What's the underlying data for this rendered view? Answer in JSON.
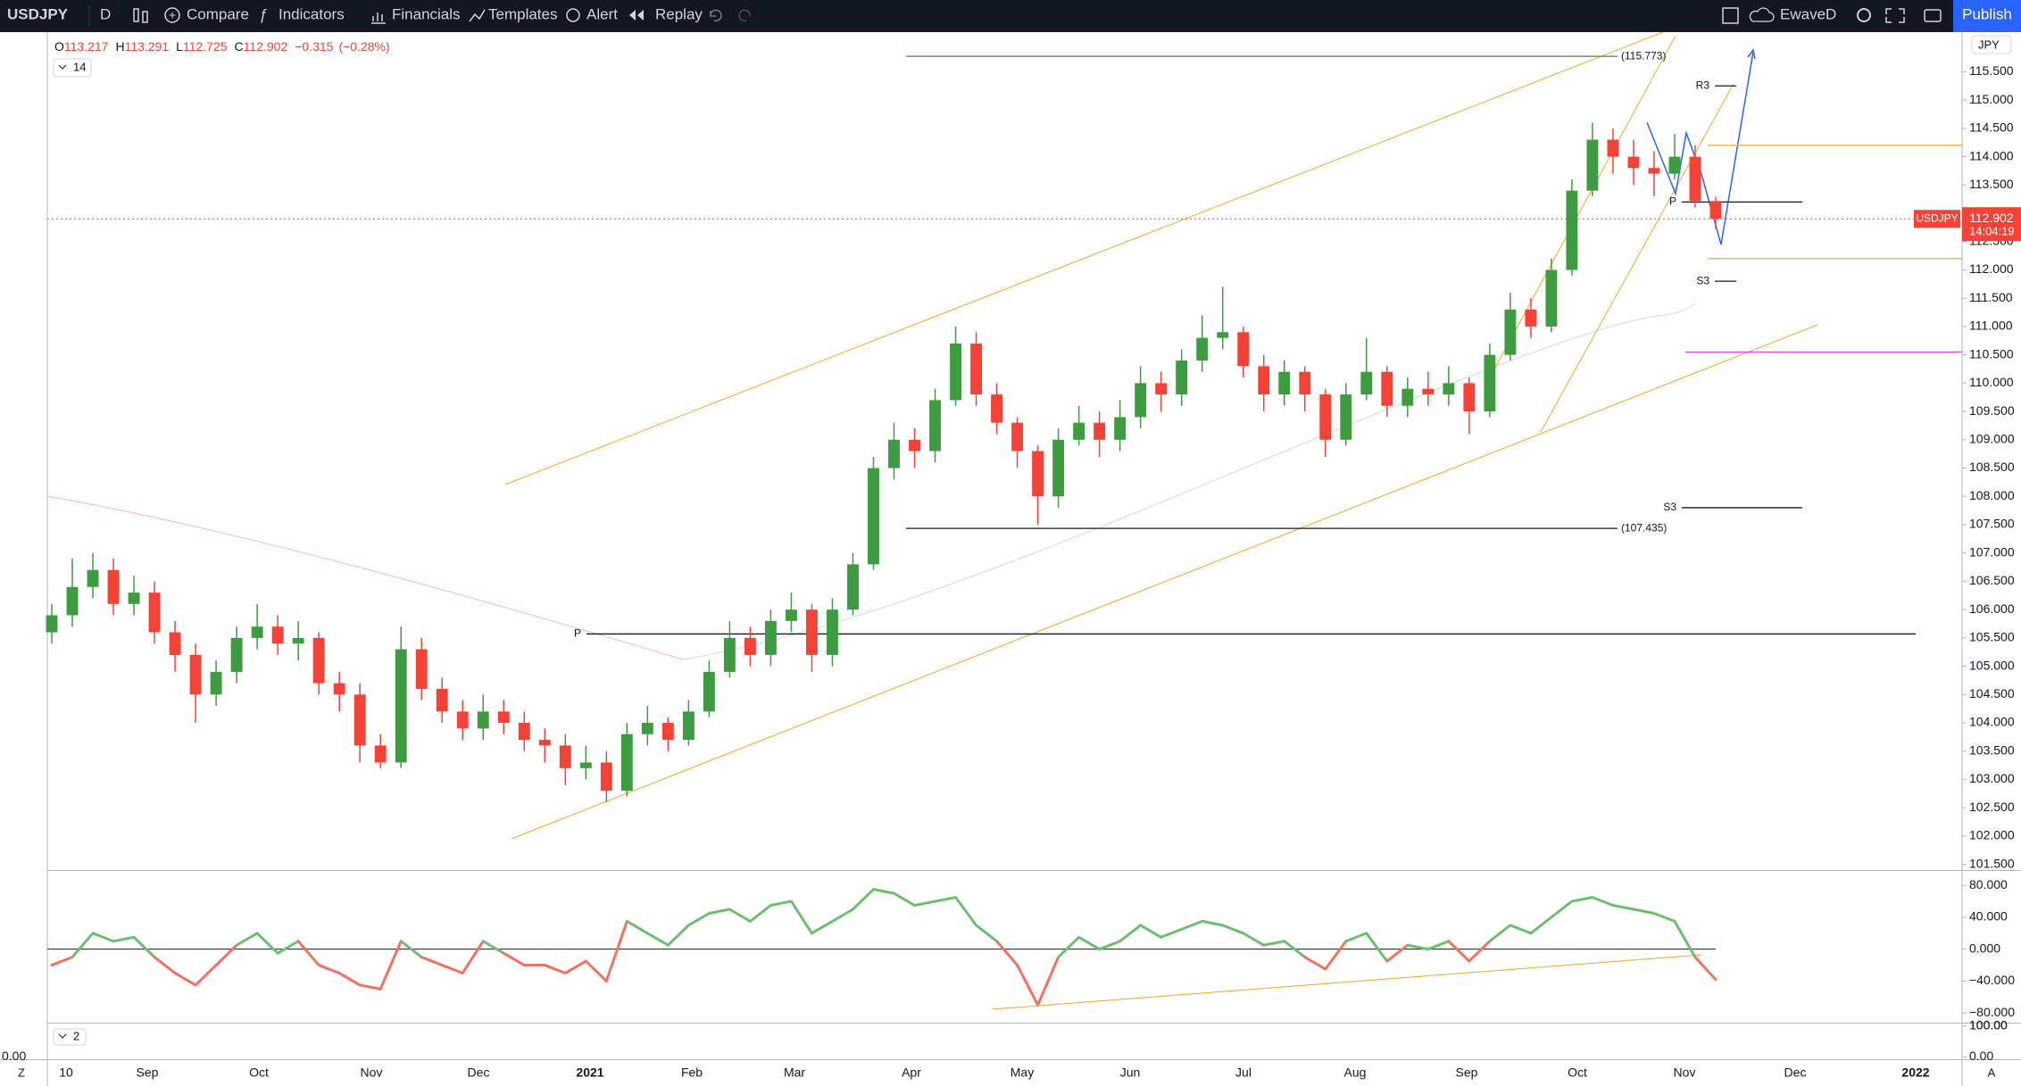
{
  "toolbar": {
    "symbol": "USDJPY",
    "interval": "D",
    "items": [
      "Compare",
      "Indicators",
      "Financials",
      "Templates",
      "Alert",
      "Replay"
    ],
    "layout": "EwaveD",
    "publish": "Publish"
  },
  "price_tag": {
    "symbol": "USDJPY",
    "countdown": "14:04:19"
  },
  "currency": "JPY",
  "indicator_param": "14",
  "stoch_param": "2",
  "corner_left": "Z",
  "corner_right": "A",
  "chart_data": {
    "type": "candlestick",
    "legend_letters": [
      "O",
      "H",
      "L",
      "C"
    ],
    "change": "−0.315",
    "change_pct": "(−0.28%)",
    "up_color": "#3d9c3f",
    "down_color": "#f44336",
    "candles": [
      [
        105.6,
        106.1,
        105.4,
        105.9
      ],
      [
        105.9,
        106.9,
        105.7,
        106.4
      ],
      [
        106.4,
        107.0,
        106.2,
        106.7
      ],
      [
        106.7,
        106.9,
        105.9,
        106.1
      ],
      [
        106.1,
        106.6,
        105.9,
        106.3
      ],
      [
        106.3,
        106.5,
        105.4,
        105.6
      ],
      [
        105.6,
        105.8,
        104.9,
        105.2
      ],
      [
        105.2,
        105.4,
        104.0,
        104.5
      ],
      [
        104.5,
        105.1,
        104.3,
        104.9
      ],
      [
        104.9,
        105.7,
        104.7,
        105.5
      ],
      [
        105.5,
        106.1,
        105.3,
        105.7
      ],
      [
        105.7,
        105.9,
        105.2,
        105.4
      ],
      [
        105.4,
        105.8,
        105.1,
        105.5
      ],
      [
        105.5,
        105.6,
        104.5,
        104.7
      ],
      [
        104.7,
        104.9,
        104.2,
        104.5
      ],
      [
        104.5,
        104.7,
        103.3,
        103.6
      ],
      [
        103.6,
        103.8,
        103.2,
        103.3
      ],
      [
        103.3,
        105.7,
        103.2,
        105.3
      ],
      [
        105.3,
        105.5,
        104.4,
        104.6
      ],
      [
        104.6,
        104.8,
        104.0,
        104.2
      ],
      [
        104.2,
        104.4,
        103.7,
        103.9
      ],
      [
        103.9,
        104.5,
        103.7,
        104.2
      ],
      [
        104.2,
        104.4,
        103.8,
        104.0
      ],
      [
        104.0,
        104.2,
        103.5,
        103.7
      ],
      [
        103.7,
        103.9,
        103.3,
        103.6
      ],
      [
        103.6,
        103.8,
        102.9,
        103.2
      ],
      [
        103.2,
        103.6,
        103.0,
        103.3
      ],
      [
        103.3,
        103.5,
        102.6,
        102.8
      ],
      [
        102.8,
        104.0,
        102.7,
        103.8
      ],
      [
        103.8,
        104.3,
        103.6,
        104.0
      ],
      [
        104.0,
        104.1,
        103.5,
        103.7
      ],
      [
        103.7,
        104.4,
        103.6,
        104.2
      ],
      [
        104.2,
        105.1,
        104.1,
        104.9
      ],
      [
        104.9,
        105.8,
        104.8,
        105.5
      ],
      [
        105.5,
        105.7,
        105.0,
        105.2
      ],
      [
        105.2,
        106.0,
        105.0,
        105.8
      ],
      [
        105.8,
        106.3,
        105.6,
        106.0
      ],
      [
        106.0,
        106.1,
        104.9,
        105.2
      ],
      [
        105.2,
        106.2,
        105.0,
        106.0
      ],
      [
        106.0,
        107.0,
        105.9,
        106.8
      ],
      [
        106.8,
        108.7,
        106.7,
        108.5
      ],
      [
        108.5,
        109.3,
        108.3,
        109.0
      ],
      [
        109.0,
        109.2,
        108.5,
        108.8
      ],
      [
        108.8,
        109.9,
        108.6,
        109.7
      ],
      [
        109.7,
        111.0,
        109.6,
        110.7
      ],
      [
        110.7,
        110.9,
        109.6,
        109.8
      ],
      [
        109.8,
        110.0,
        109.1,
        109.3
      ],
      [
        109.3,
        109.4,
        108.5,
        108.8
      ],
      [
        108.8,
        108.9,
        107.5,
        108.0
      ],
      [
        108.0,
        109.2,
        107.8,
        109.0
      ],
      [
        109.0,
        109.6,
        108.9,
        109.3
      ],
      [
        109.3,
        109.5,
        108.7,
        109.0
      ],
      [
        109.0,
        109.7,
        108.8,
        109.4
      ],
      [
        109.4,
        110.3,
        109.2,
        110.0
      ],
      [
        110.0,
        110.2,
        109.5,
        109.8
      ],
      [
        109.8,
        110.6,
        109.6,
        110.4
      ],
      [
        110.4,
        111.2,
        110.2,
        110.8
      ],
      [
        110.8,
        111.7,
        110.6,
        110.9
      ],
      [
        110.9,
        111.0,
        110.1,
        110.3
      ],
      [
        110.3,
        110.5,
        109.5,
        109.8
      ],
      [
        109.8,
        110.4,
        109.6,
        110.2
      ],
      [
        110.2,
        110.3,
        109.5,
        109.8
      ],
      [
        109.8,
        109.9,
        108.7,
        109.0
      ],
      [
        109.0,
        110.0,
        108.9,
        109.8
      ],
      [
        109.8,
        110.8,
        109.7,
        110.2
      ],
      [
        110.2,
        110.3,
        109.4,
        109.6
      ],
      [
        109.6,
        110.1,
        109.4,
        109.9
      ],
      [
        109.9,
        110.2,
        109.6,
        109.8
      ],
      [
        109.8,
        110.3,
        109.6,
        110.0
      ],
      [
        110.0,
        110.1,
        109.1,
        109.5
      ],
      [
        109.5,
        110.7,
        109.4,
        110.5
      ],
      [
        110.5,
        111.6,
        110.4,
        111.3
      ],
      [
        111.3,
        111.5,
        110.8,
        111.0
      ],
      [
        111.0,
        112.2,
        110.9,
        112.0
      ],
      [
        112.0,
        113.6,
        111.9,
        113.4
      ],
      [
        113.4,
        114.6,
        113.3,
        114.3
      ],
      [
        114.3,
        114.5,
        113.7,
        114.0
      ],
      [
        114.0,
        114.3,
        113.5,
        113.8
      ],
      [
        113.8,
        114.1,
        113.3,
        113.7
      ],
      [
        113.7,
        114.4,
        113.6,
        114.0
      ],
      [
        114.0,
        114.2,
        113.1,
        113.217
      ],
      [
        113.217,
        113.291,
        112.725,
        112.902
      ]
    ],
    "ylim": [
      101.4,
      116.2
    ],
    "yticks": [
      {
        "value": 101.5,
        "label": "101.500"
      },
      {
        "value": 102,
        "label": "102.000"
      },
      {
        "value": 102.5,
        "label": "102.500"
      },
      {
        "value": 103,
        "label": "103.000"
      },
      {
        "value": 103.5,
        "label": "103.500"
      },
      {
        "value": 104,
        "label": "104.000"
      },
      {
        "value": 104.5,
        "label": "104.500"
      },
      {
        "value": 105,
        "label": "105.000"
      },
      {
        "value": 105.5,
        "label": "105.500"
      },
      {
        "value": 106,
        "label": "106.000"
      },
      {
        "value": 106.5,
        "label": "106.500"
      },
      {
        "value": 107,
        "label": "107.000"
      },
      {
        "value": 107.5,
        "label": "107.500"
      },
      {
        "value": 108,
        "label": "108.000"
      },
      {
        "value": 108.5,
        "label": "108.500"
      },
      {
        "value": 109,
        "label": "109.000"
      },
      {
        "value": 109.5,
        "label": "109.500"
      },
      {
        "value": 110,
        "label": "110.000"
      },
      {
        "value": 110.5,
        "label": "110.500"
      },
      {
        "value": 111,
        "label": "111.000"
      },
      {
        "value": 111.5,
        "label": "111.500"
      },
      {
        "value": 112,
        "label": "112.000"
      },
      {
        "value": 112.5,
        "label": "112.500"
      },
      {
        "value": 113,
        "label": "113.000"
      },
      {
        "value": 113.5,
        "label": "113.500"
      },
      {
        "value": 114,
        "label": "114.000"
      },
      {
        "value": 114.5,
        "label": "114.500"
      },
      {
        "value": 115,
        "label": "115.000"
      },
      {
        "value": 115.5,
        "label": "115.500"
      }
    ],
    "time_labels": [
      "10",
      "Sep",
      "Oct",
      "Nov",
      "Dec",
      "2021",
      "Feb",
      "Mar",
      "Apr",
      "May",
      "Jun",
      "Jul",
      "Aug",
      "Sep",
      "Oct",
      "Nov",
      "Dec",
      "2022"
    ],
    "hlines": [
      {
        "label": "(115.773)",
        "value": 115.773,
        "color": "#388e3c"
      },
      {
        "label": "(107.435)",
        "value": 107.435,
        "color": "#131722"
      },
      {
        "label": "P",
        "value": 105.57,
        "color": "#131722"
      },
      {
        "label": "R3",
        "value": 115.25,
        "color": "#131722"
      },
      {
        "label": "S3",
        "value": 111.8,
        "color": "#131722"
      },
      {
        "label": "P",
        "value": 113.2,
        "color": "#131722"
      },
      {
        "label": "S3",
        "value": 107.8,
        "color": "#131722"
      },
      {
        "value": 114.2,
        "color": "#f5a623"
      },
      {
        "value": 112.2,
        "color": "#f5a623"
      },
      {
        "value": 110.55,
        "color": "#d64fd6"
      }
    ],
    "oscillator": {
      "type": "line",
      "up_color": "#6cbf6f",
      "down_color": "#f07262",
      "values": [
        -20,
        -10,
        20,
        10,
        15,
        -10,
        -30,
        -45,
        -20,
        5,
        20,
        -5,
        10,
        -20,
        -30,
        -45,
        -50,
        10,
        -10,
        -20,
        -30,
        10,
        -5,
        -20,
        -20,
        -30,
        -15,
        -40,
        35,
        20,
        5,
        30,
        45,
        50,
        35,
        55,
        60,
        20,
        35,
        50,
        75,
        70,
        55,
        60,
        65,
        30,
        10,
        -20,
        -70,
        -10,
        15,
        0,
        10,
        30,
        15,
        25,
        35,
        30,
        20,
        5,
        10,
        -10,
        -25,
        10,
        20,
        -15,
        5,
        0,
        10,
        -15,
        10,
        30,
        20,
        40,
        60,
        65,
        55,
        50,
        45,
        35,
        -10,
        -38
      ],
      "ylim": [
        -91,
        97
      ],
      "yticks": [
        {
          "value": 80,
          "label": "80.000"
        },
        {
          "value": 40,
          "label": "40.000"
        },
        {
          "value": 0,
          "label": "0.000"
        },
        {
          "value": -40,
          "label": "−40.000"
        },
        {
          "value": -80,
          "label": "−80.000"
        }
      ]
    },
    "stochastic": {
      "ylim": [
        -5,
        105
      ],
      "yticks": [
        {
          "value": 100,
          "label": "100.00"
        },
        {
          "value": 0,
          "label": "0.00"
        }
      ]
    }
  }
}
